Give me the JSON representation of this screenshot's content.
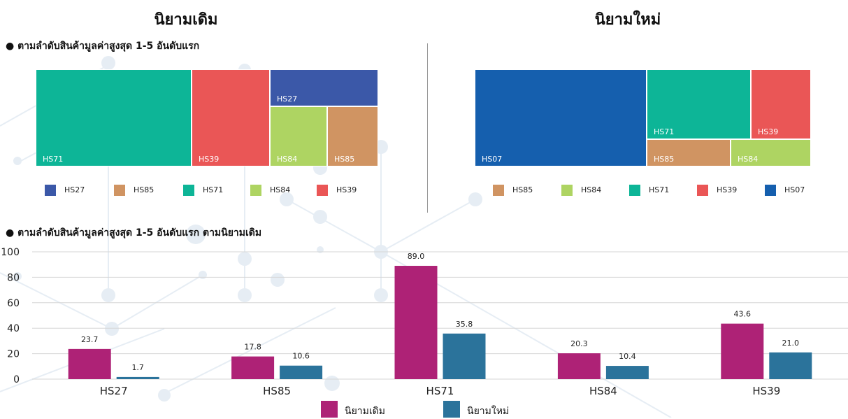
{
  "header": {
    "left_title": "นิยามเดิม",
    "right_title": "นิยามใหม่",
    "treemap_subtitle": "● ตามลำดับสินค้ามูลค่าสูงสุด 1-5 อันดับแรก",
    "bar_subtitle": "● ตามลำดับสินค้ามูลค่าสูงสุด 1-5 อันดับแรก ตามนิยามเดิม"
  },
  "colors": {
    "HS71": "#0db597",
    "HS39": "#ea5656",
    "HS27": "#3b58a8",
    "HS84": "#aed462",
    "HS85": "#d09462",
    "HS07": "#155fae",
    "old_series": "#ae2276",
    "new_series": "#2b739b"
  },
  "chart_data": [
    {
      "type": "treemap",
      "title": "นิยามเดิม",
      "tiles": [
        {
          "label": "HS71",
          "value": 89.0
        },
        {
          "label": "HS39",
          "value": 43.6
        },
        {
          "label": "HS27",
          "value": 23.7
        },
        {
          "label": "HS84",
          "value": 20.3
        },
        {
          "label": "HS85",
          "value": 17.8
        }
      ],
      "legend": [
        "HS27",
        "HS85",
        "HS71",
        "HS84",
        "HS39"
      ]
    },
    {
      "type": "treemap",
      "title": "นิยามใหม่",
      "tiles": [
        {
          "label": "HS07"
        },
        {
          "label": "HS71",
          "value": 35.8
        },
        {
          "label": "HS39",
          "value": 21.0
        },
        {
          "label": "HS85",
          "value": 10.6
        },
        {
          "label": "HS84",
          "value": 10.4
        }
      ],
      "legend": [
        "HS85",
        "HS84",
        "HS71",
        "HS39",
        "HS07"
      ]
    },
    {
      "type": "bar",
      "categories": [
        "HS27",
        "HS85",
        "HS71",
        "HS84",
        "HS39"
      ],
      "series": [
        {
          "name": "นิยามเดิม",
          "values": [
            23.7,
            17.8,
            89.0,
            20.3,
            43.6
          ]
        },
        {
          "name": "นิยามใหม่",
          "values": [
            1.7,
            10.6,
            35.8,
            10.4,
            21.0
          ]
        }
      ],
      "ylim": [
        0,
        100
      ],
      "yticks": [
        0,
        20,
        40,
        60,
        80,
        100
      ],
      "grid": true,
      "legend_position": "bottom"
    }
  ]
}
